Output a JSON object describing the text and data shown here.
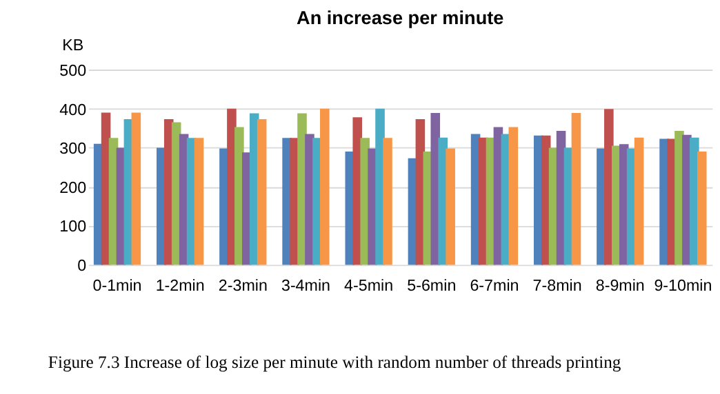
{
  "chart_data": {
    "type": "bar",
    "title": "An increase per minute",
    "ylabel": "KB",
    "categories": [
      "0-1min",
      "1-2min",
      "2-3min",
      "3-4min",
      "4-5min",
      "5-6min",
      "6-7min",
      "7-8min",
      "8-9min",
      "9-10min"
    ],
    "series": [
      {
        "color": "#4f81bd",
        "values": [
          310,
          300,
          298,
          325,
          290,
          273,
          335,
          331,
          298,
          323
        ]
      },
      {
        "color": "#c0504d",
        "values": [
          390,
          373,
          400,
          325,
          378,
          373,
          326,
          331,
          399,
          323
        ]
      },
      {
        "color": "#9bbb59",
        "values": [
          325,
          365,
          353,
          388,
          325,
          290,
          326,
          300,
          305,
          343
        ]
      },
      {
        "color": "#8064a2",
        "values": [
          300,
          335,
          288,
          335,
          298,
          389,
          353,
          343,
          309,
          333
        ]
      },
      {
        "color": "#4bacc6",
        "values": [
          373,
          325,
          388,
          325,
          400,
          326,
          335,
          300,
          298,
          326
        ]
      },
      {
        "color": "#f79646",
        "values": [
          390,
          325,
          373,
          400,
          325,
          298,
          353,
          389,
          326,
          290
        ]
      }
    ],
    "ylim": [
      0,
      500
    ],
    "yticks": [
      0,
      100,
      200,
      300,
      400,
      500
    ],
    "grid": "y",
    "legend": false,
    "annotations": [
      "Figure 7.3 Increase of log size per minute with random number of threads printing"
    ]
  }
}
